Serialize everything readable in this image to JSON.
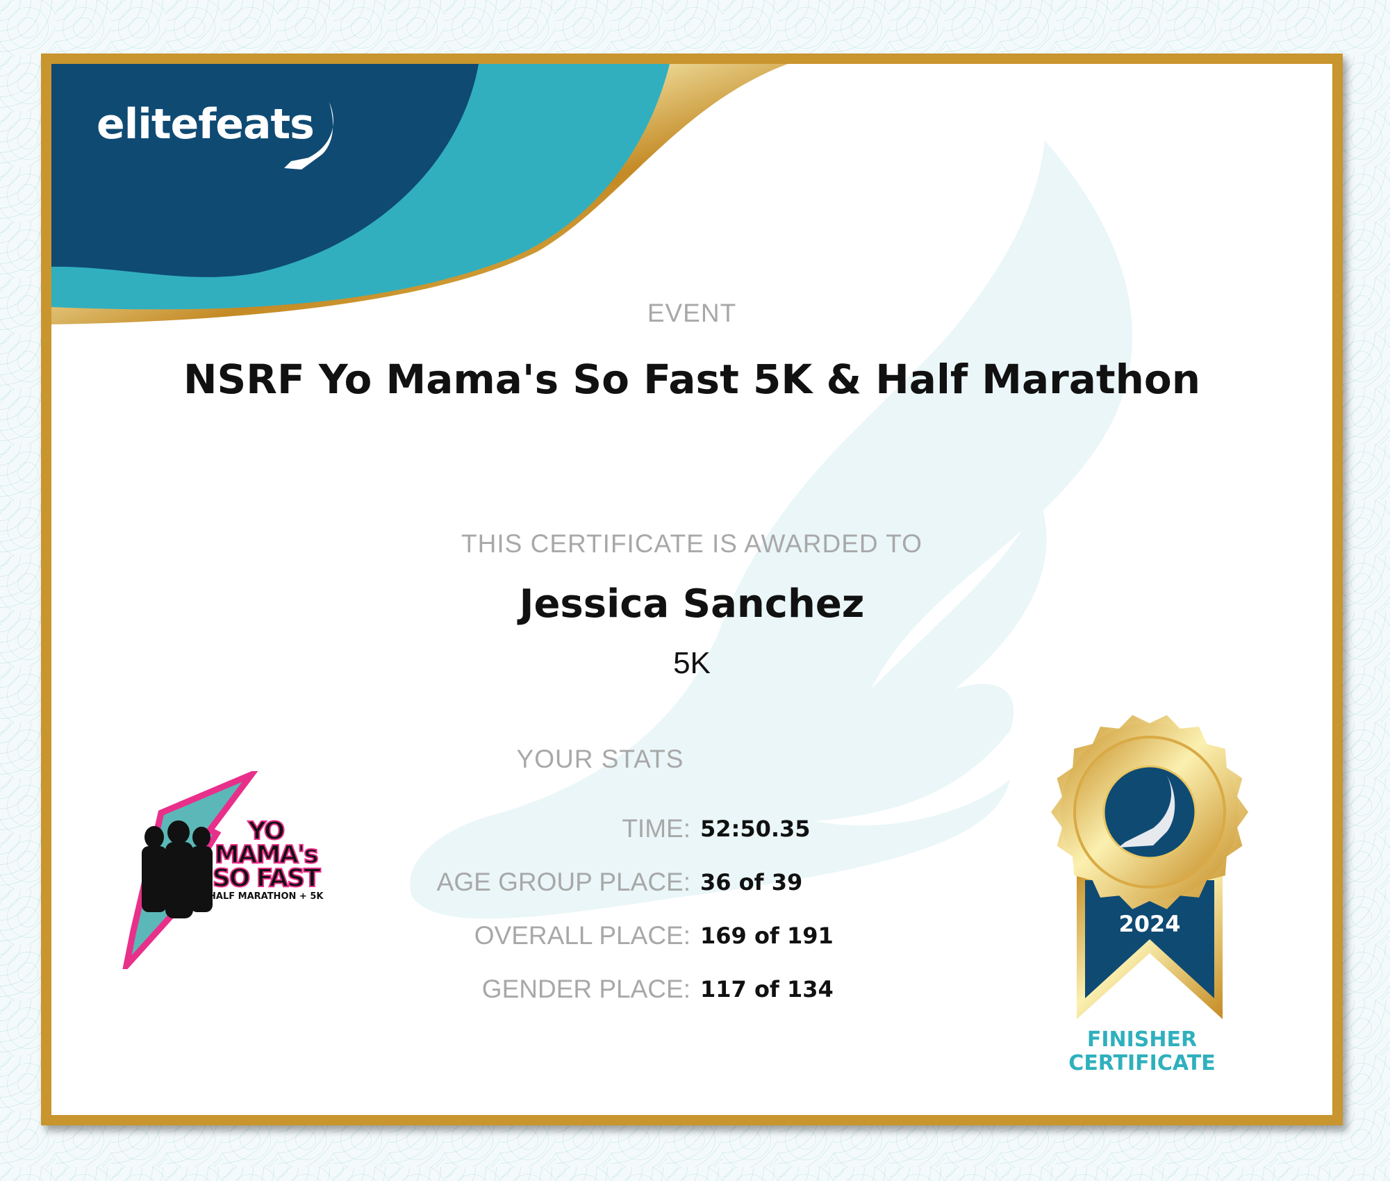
{
  "brand": {
    "name": "elitefeats",
    "icon": "winged-foot-icon"
  },
  "event": {
    "label": "EVENT",
    "title": "NSRF Yo Mama's So Fast 5K & Half Marathon"
  },
  "award": {
    "label": "THIS CERTIFICATE IS AWARDED TO",
    "name": "Jessica Sanchez",
    "distance": "5K"
  },
  "stats": {
    "title": "YOUR STATS",
    "rows": [
      {
        "label": "TIME:",
        "value": "52:50.35"
      },
      {
        "label": "AGE GROUP PLACE:",
        "value": "36 of 39"
      },
      {
        "label": "OVERALL PLACE:",
        "value": "169 of 191"
      },
      {
        "label": "GENDER PLACE:",
        "value": "117 of 134"
      }
    ]
  },
  "event_logo": {
    "lines": [
      "YO",
      "MAMA's",
      "SO FAST",
      "HALF MARATHON + 5K"
    ]
  },
  "medal": {
    "year": "2024",
    "line1": "FINISHER",
    "line2": "CERTIFICATE"
  },
  "colors": {
    "navy": "#0f4a73",
    "teal": "#31afbf",
    "gold": "#c9952e",
    "pink": "#e8308a"
  }
}
